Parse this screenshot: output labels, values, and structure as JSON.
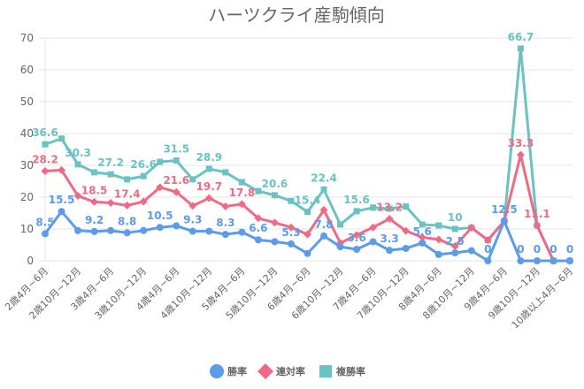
{
  "chart_data": {
    "type": "line",
    "title": "ハーツクライ産駒傾向",
    "xlabel": "",
    "ylabel": "",
    "ylim": [
      0,
      70
    ],
    "yticks": [
      0,
      10,
      20,
      30,
      40,
      50,
      60,
      70
    ],
    "grid": true,
    "legend_position": "bottom",
    "x_tick_labels": [
      "2歳4月~6月",
      null,
      "2歳10月~12月",
      null,
      "3歳4月~6月",
      null,
      "3歳10月~12月",
      null,
      "4歳4月~6月",
      null,
      "4歳10月~12月",
      null,
      "5歳4月~6月",
      null,
      "5歳10月~12月",
      null,
      "6歳4月~6月",
      null,
      "6歳10月~12月",
      null,
      "7歳4月~6月",
      null,
      "7歳10月~12月",
      null,
      "8歳4月~6月",
      null,
      "8歳10月~12月",
      null,
      "9歳4月~6月",
      null,
      "9歳10月~12月",
      null,
      "10歳以上4月~6月"
    ],
    "series": [
      {
        "name": "勝率",
        "color": "#5b9bea",
        "marker": "circle",
        "values": [
          8.5,
          15.5,
          9.5,
          9.2,
          9.5,
          8.8,
          9.5,
          10.5,
          11.0,
          9.3,
          9.3,
          8.3,
          9.0,
          6.6,
          6.0,
          5.3,
          2.3,
          7.8,
          4.4,
          3.6,
          6.0,
          3.3,
          3.9,
          5.6,
          2.0,
          2.5,
          3.2,
          0,
          12.5,
          0,
          0,
          0,
          0
        ],
        "labels": {
          "0": "8.5",
          "1": "15.5",
          "3": "9.2",
          "5": "8.8",
          "7": "10.5",
          "9": "9.3",
          "11": "8.3",
          "13": "6.6",
          "15": "5.3",
          "17": "7.8",
          "19": "3.6",
          "21": "3.3",
          "23": "5.6",
          "25": "2.5",
          "27": "0",
          "28": "12.5",
          "29": "0",
          "30": "0",
          "31": "0",
          "32": "0"
        }
      },
      {
        "name": "連対率",
        "color": "#ef6b85",
        "marker": "diamond",
        "values": [
          28.2,
          28.5,
          20.4,
          18.5,
          18.2,
          17.4,
          18.6,
          23.1,
          21.6,
          17.3,
          19.7,
          17.1,
          17.8,
          13.4,
          12.0,
          10.5,
          8.3,
          16.0,
          5.6,
          8.1,
          10.5,
          13.2,
          9.4,
          7.4,
          6.7,
          4.6,
          10.4,
          6.5,
          12.5,
          33.3,
          11.1,
          0,
          0
        ],
        "labels": {
          "0": "28.2",
          "3": "18.5",
          "5": "17.4",
          "8": "21.6",
          "10": "19.7",
          "12": "17.8",
          "21": "13.2",
          "29": "33.3",
          "30": "11.1"
        }
      },
      {
        "name": "複勝率",
        "color": "#6cc2c0",
        "marker": "square",
        "values": [
          36.6,
          38.4,
          30.3,
          27.8,
          27.2,
          25.6,
          26.6,
          31.1,
          31.5,
          25.6,
          28.9,
          27.8,
          24.7,
          21.9,
          20.6,
          18.8,
          15.4,
          22.4,
          11.4,
          15.6,
          16.7,
          16.4,
          17.1,
          11.4,
          11.1,
          10.0,
          10.4,
          6.5,
          12.5,
          66.7,
          11.1,
          0,
          0
        ],
        "labels": {
          "0": "36.6",
          "2": "30.3",
          "4": "27.2",
          "6": "26.6",
          "8": "31.5",
          "10": "28.9",
          "14": "20.6",
          "16": "15.4",
          "17": "22.4",
          "19": "15.6",
          "25": "10",
          "29": "66.7"
        }
      }
    ]
  }
}
